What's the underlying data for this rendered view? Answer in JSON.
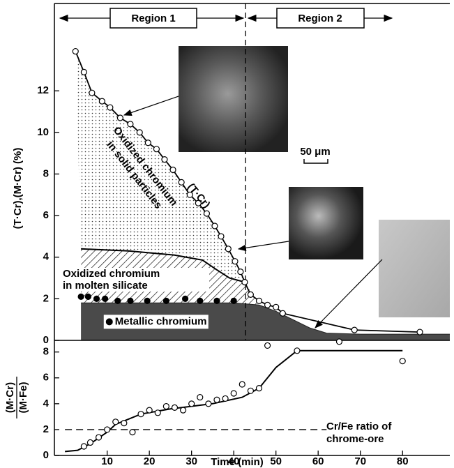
{
  "chart_data": [
    {
      "type": "scatter",
      "ylabel": "(T·Cr),(M·Cr) (%)",
      "xlim": [
        -2.5,
        91.2
      ],
      "ylim": [
        0,
        16.2
      ],
      "yticks": [
        0,
        2,
        4,
        6,
        8,
        10,
        12
      ],
      "regions": [
        "Region 1",
        "Region 2"
      ],
      "region_split": 42.8,
      "scale_bar": "50 μm",
      "layer_labels": [
        [
          "Oxidized chromium",
          "in solid particles"
        ],
        [
          "Oxidized chromium",
          "in molten silicate"
        ]
      ],
      "series": [
        {
          "name": "(T·Cr)",
          "marker": "open",
          "line": true,
          "color": "#000000",
          "x": [
            2.5,
            4.5,
            6.4,
            8.8,
            10.7,
            13.1,
            15.5,
            17.7,
            19.7,
            21.7,
            23.6,
            25.6,
            27.6,
            29.6,
            31.6,
            33.6,
            35.5,
            37,
            38.7,
            40.3,
            41.6,
            42.6,
            44,
            46,
            48,
            50,
            51.6,
            68.6,
            84.1
          ],
          "values": [
            13.9,
            12.9,
            11.9,
            11.5,
            11.2,
            10.7,
            10.4,
            10.0,
            9.5,
            9.2,
            8.7,
            8.2,
            7.6,
            7.0,
            6.6,
            6.1,
            5.5,
            5.0,
            4.4,
            3.8,
            3.3,
            2.8,
            2.2,
            1.9,
            1.7,
            1.6,
            1.3,
            0.5,
            0.4
          ]
        },
        {
          "name": "Metallic chromium",
          "marker": "filled",
          "line": false,
          "color": "#000000",
          "x": [
            3.8,
            5.5,
            7.5,
            9.5,
            12.5,
            15.5,
            19.5,
            24,
            28.5,
            32,
            36,
            40
          ],
          "values": [
            2.1,
            2.1,
            2.0,
            2.0,
            1.9,
            1.9,
            1.9,
            1.9,
            2.0,
            1.9,
            1.9,
            1.9
          ]
        }
      ],
      "silicate_top": {
        "x": [
          3.8,
          15,
          26,
          32.6,
          35.9,
          39,
          42.6
        ],
        "values": [
          4.4,
          4.3,
          4.1,
          3.86,
          3.4,
          3.0,
          2.8
        ]
      },
      "metallic_top": {
        "x": [
          3.8,
          20,
          40,
          46,
          50,
          54,
          58,
          62,
          70,
          91.2
        ],
        "values": [
          1.8,
          1.8,
          1.8,
          1.7,
          1.4,
          1.0,
          0.6,
          0.35,
          0.3,
          0.3
        ]
      }
    },
    {
      "type": "scatter",
      "ylabel": [
        "(M·Cr)",
        "(M·Fe)"
      ],
      "xlabel": "Time (min)",
      "xlim": [
        -2.5,
        91.2
      ],
      "ylim": [
        0,
        8.9
      ],
      "xticks": [
        10,
        20,
        30,
        40,
        50,
        60,
        70,
        80
      ],
      "yticks": [
        0,
        2,
        4,
        6,
        8
      ],
      "series": [
        {
          "marker": "open",
          "line": false,
          "color": "#000000",
          "x": [
            4.5,
            6,
            8,
            10,
            12,
            14,
            16,
            18,
            20,
            22,
            24,
            26,
            28,
            30,
            32,
            34,
            36,
            38,
            40,
            42,
            44,
            46,
            48,
            55,
            65,
            80
          ],
          "values": [
            0.7,
            1.0,
            1.4,
            2.0,
            2.6,
            2.5,
            1.8,
            3.2,
            3.5,
            3.3,
            3.8,
            3.7,
            3.5,
            4.0,
            4.5,
            4.0,
            4.3,
            4.4,
            4.8,
            5.5,
            5.0,
            5.2,
            8.5,
            8.1,
            8.8,
            7.3
          ]
        }
      ],
      "fit": {
        "x": [
          0,
          3,
          6,
          10,
          12,
          18,
          25,
          35,
          42,
          46,
          50,
          55,
          80
        ],
        "values": [
          0.3,
          0.4,
          0.9,
          1.8,
          2.4,
          3.2,
          3.6,
          4.0,
          4.5,
          5.2,
          6.8,
          8.1,
          8.1
        ]
      },
      "reference": {
        "value": 2,
        "x": [
          0,
          62
        ],
        "label": [
          "Cr/Fe ratio of",
          "chrome-ore"
        ]
      }
    }
  ]
}
